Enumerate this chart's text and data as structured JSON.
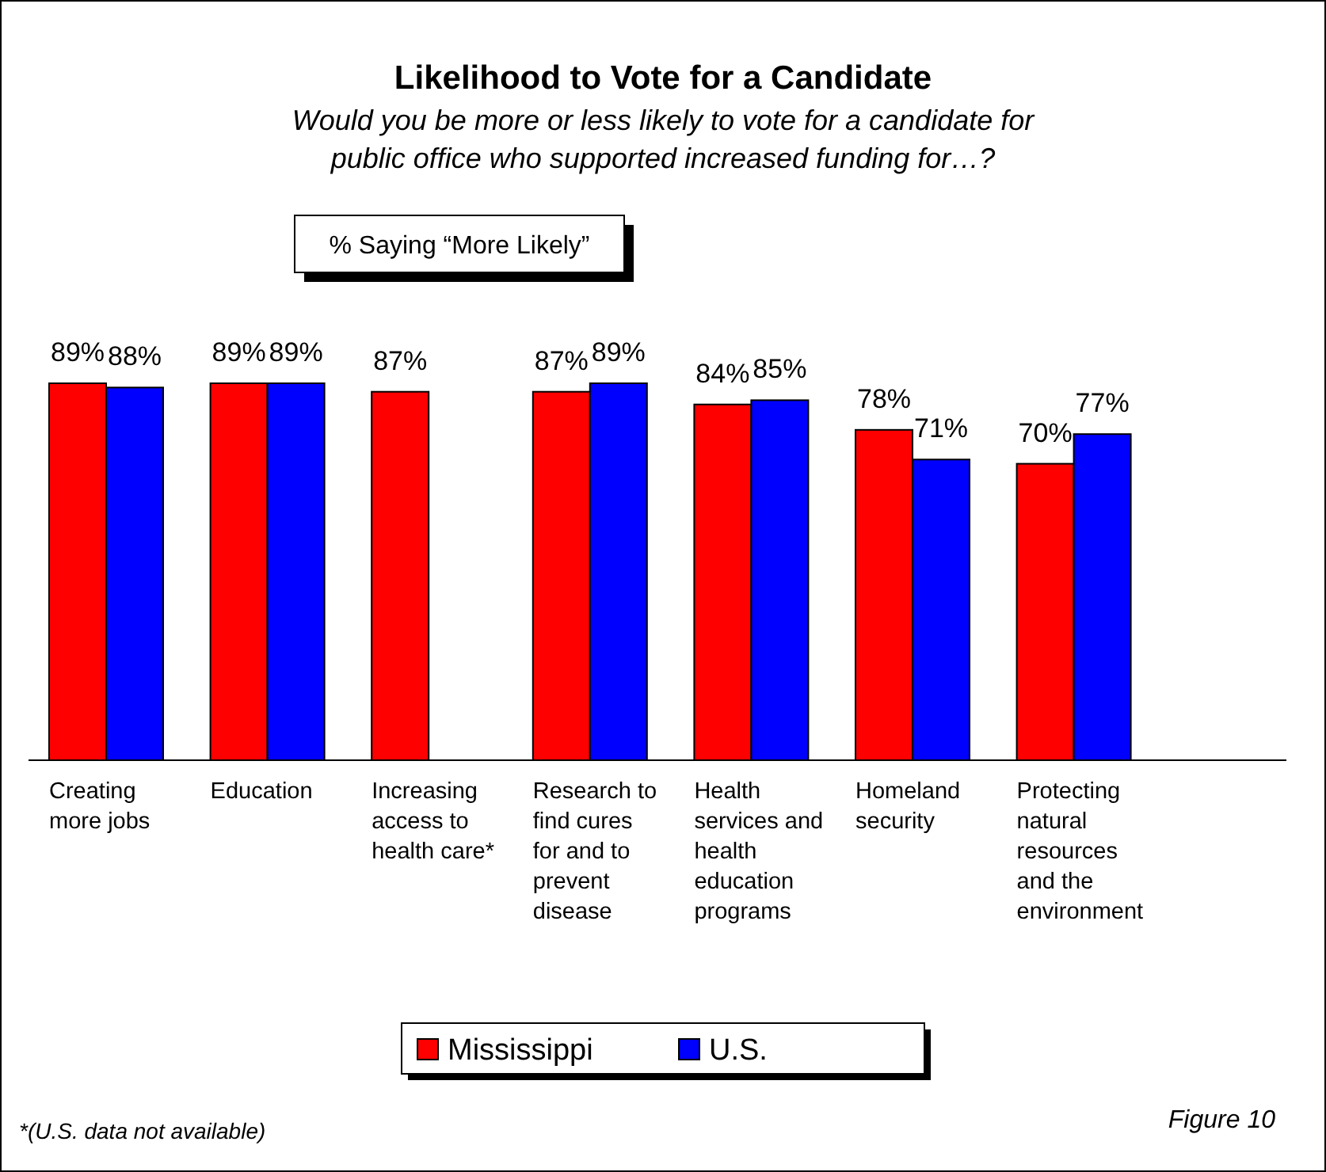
{
  "chart_data": {
    "type": "bar",
    "title": "Likelihood to Vote for a Candidate",
    "subtitle": "Would you be more or less likely to vote for a candidate for public office who supported increased funding for…?",
    "categories": [
      "Creating more jobs",
      "Education",
      "Increasing access to health care*",
      "Research to find cures for and to prevent disease",
      "Health services and health education programs",
      "Homeland security",
      "Protecting natural resources and the environment"
    ],
    "series": [
      {
        "name": "Mississippi",
        "color": "#ff0000",
        "values": [
          89,
          89,
          87,
          87,
          84,
          78,
          70
        ],
        "value_labels": [
          "89%",
          "89%",
          "87%",
          "87%",
          "84%",
          "78%",
          "70%"
        ]
      },
      {
        "name": "U.S.",
        "color": "#0000ff",
        "values": [
          88,
          89,
          null,
          89,
          85,
          71,
          77
        ],
        "value_labels": [
          "88%",
          "89%",
          null,
          "89%",
          "85%",
          "71%",
          "77%"
        ]
      }
    ],
    "data_labels": true,
    "legend": "bottom",
    "annotations": [
      "% Saying “More Likely”",
      "*(U.S. data not available)",
      "Figure 10"
    ]
  }
}
